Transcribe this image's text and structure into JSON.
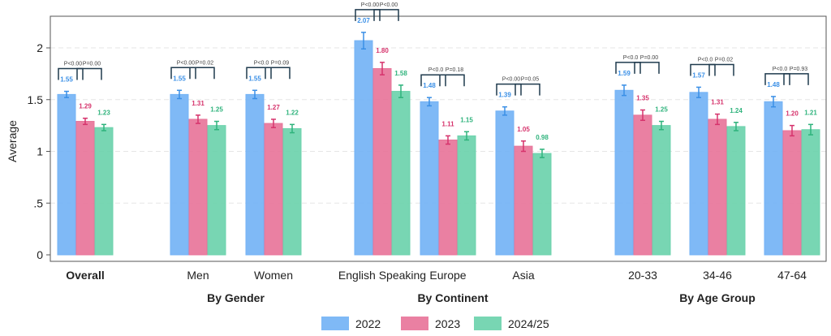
{
  "chart_data": {
    "type": "bar",
    "ylabel": "Average",
    "ylim": [
      0,
      2.2
    ],
    "yticks": [
      {
        "value": 0,
        "label": "0"
      },
      {
        "value": 0.5,
        "label": ".5"
      },
      {
        "value": 1,
        "label": "1"
      },
      {
        "value": 1.5,
        "label": "1.5"
      },
      {
        "value": 2,
        "label": "2"
      }
    ],
    "grid": true,
    "legend_position": "bottom-center",
    "series": [
      {
        "name": "2022",
        "color": "#74b3f5",
        "label_color": "#3a8fe6"
      },
      {
        "name": "2023",
        "color": "#e8759a",
        "label_color": "#d6336c"
      },
      {
        "name": "2024/25",
        "color": "#6dd3ad",
        "label_color": "#2fb37c"
      }
    ],
    "categories": [
      {
        "label": "Overall",
        "bold": true,
        "values": [
          1.55,
          1.29,
          1.23
        ],
        "value_labels": [
          "1.55",
          "1.29",
          "1.23"
        ],
        "errors": [
          0.03,
          0.03,
          0.03
        ],
        "pvalues": [
          "P<0.00",
          "P=0.00"
        ]
      },
      {
        "label": "Men",
        "bold": false,
        "values": [
          1.55,
          1.31,
          1.25
        ],
        "value_labels": [
          "1.55",
          "1.31",
          "1.25"
        ],
        "errors": [
          0.04,
          0.04,
          0.04
        ],
        "pvalues": [
          "P<0.00",
          "P=0.02"
        ]
      },
      {
        "label": "Women",
        "bold": false,
        "values": [
          1.55,
          1.27,
          1.22
        ],
        "value_labels": [
          "1.55",
          "1.27",
          "1.22"
        ],
        "errors": [
          0.04,
          0.04,
          0.04
        ],
        "pvalues": [
          "P<0.0",
          "P=0.09"
        ]
      },
      {
        "label": "English Speaking",
        "bold": false,
        "values": [
          2.07,
          1.8,
          1.58
        ],
        "value_labels": [
          "2.07",
          "1.80",
          "1.58"
        ],
        "errors": [
          0.08,
          0.06,
          0.06
        ],
        "pvalues": [
          "P<0.00",
          "P<0.00"
        ]
      },
      {
        "label": "Europe",
        "bold": false,
        "values": [
          1.48,
          1.11,
          1.15
        ],
        "value_labels": [
          "1.48",
          "1.11",
          "1.15"
        ],
        "errors": [
          0.04,
          0.04,
          0.04
        ],
        "pvalues": [
          "P<0.0",
          "P=0.18"
        ]
      },
      {
        "label": "Asia",
        "bold": false,
        "values": [
          1.39,
          1.05,
          0.98
        ],
        "value_labels": [
          "1.39",
          "1.05",
          "0.98"
        ],
        "errors": [
          0.04,
          0.05,
          0.04
        ],
        "pvalues": [
          "P<0.00",
          "P=0.05"
        ]
      },
      {
        "label": "20-33",
        "bold": false,
        "values": [
          1.59,
          1.35,
          1.25
        ],
        "value_labels": [
          "1.59",
          "1.35",
          "1.25"
        ],
        "errors": [
          0.05,
          0.05,
          0.04
        ],
        "pvalues": [
          "P<0.0",
          "P=0.00"
        ]
      },
      {
        "label": "34-46",
        "bold": false,
        "values": [
          1.57,
          1.31,
          1.24
        ],
        "value_labels": [
          "1.57",
          "1.31",
          "1.24"
        ],
        "errors": [
          0.05,
          0.05,
          0.04
        ],
        "pvalues": [
          "P<0.0",
          "P=0.02"
        ]
      },
      {
        "label": "47-64",
        "bold": false,
        "values": [
          1.48,
          1.2,
          1.21
        ],
        "value_labels": [
          "1.48",
          "1.20",
          "1.21"
        ],
        "errors": [
          0.05,
          0.05,
          0.05
        ],
        "pvalues": [
          "P<0.0",
          "P=0.93"
        ]
      }
    ],
    "groups": [
      {
        "label": "By Gender",
        "categories": [
          1,
          2
        ]
      },
      {
        "label": "By Continent",
        "categories": [
          3,
          4,
          5
        ]
      },
      {
        "label": "By Age Group",
        "categories": [
          6,
          7,
          8
        ]
      }
    ]
  }
}
